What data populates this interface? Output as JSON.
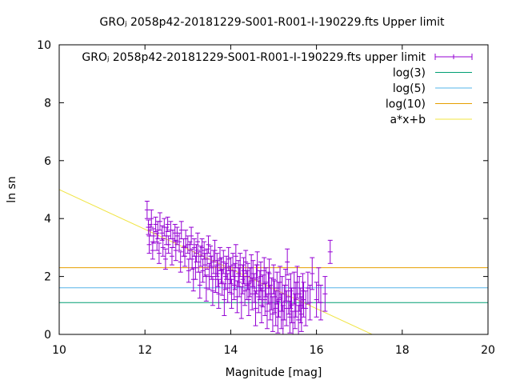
{
  "chart_data": {
    "type": "scatter",
    "title": "GROⱼ 2058p42-20181229-S001-R001-I-190229.fts Upper limit",
    "xlabel": "Magnitude [mag]",
    "ylabel": "ln sn",
    "xlim": [
      10,
      20
    ],
    "ylim": [
      0,
      10
    ],
    "xticks": [
      10,
      12,
      14,
      16,
      18,
      20
    ],
    "yticks": [
      0,
      2,
      4,
      6,
      8,
      10
    ],
    "grid": false,
    "legend_position": "top-right",
    "series": [
      {
        "name": "GROⱼ 2058p42-20181229-S001-R001-I-190229.fts upper limit",
        "kind": "errorbars",
        "color": "#9400d3",
        "points": [
          [
            12.05,
            4.3,
            0.3
          ],
          [
            12.08,
            3.7,
            0.25
          ],
          [
            12.1,
            3.1,
            0.3
          ],
          [
            12.12,
            3.6,
            0.2
          ],
          [
            12.15,
            4.0,
            0.3
          ],
          [
            12.18,
            2.9,
            0.3
          ],
          [
            12.2,
            3.4,
            0.25
          ],
          [
            12.25,
            3.8,
            0.25
          ],
          [
            12.28,
            3.2,
            0.3
          ],
          [
            12.3,
            3.6,
            0.3
          ],
          [
            12.33,
            2.8,
            0.35
          ],
          [
            12.35,
            3.9,
            0.3
          ],
          [
            12.4,
            3.5,
            0.25
          ],
          [
            12.42,
            3.0,
            0.3
          ],
          [
            12.45,
            3.7,
            0.3
          ],
          [
            12.48,
            2.6,
            0.35
          ],
          [
            12.5,
            3.4,
            0.3
          ],
          [
            12.53,
            3.8,
            0.25
          ],
          [
            12.55,
            3.1,
            0.3
          ],
          [
            12.6,
            3.6,
            0.3
          ],
          [
            12.63,
            2.7,
            0.3
          ],
          [
            12.65,
            3.3,
            0.3
          ],
          [
            12.7,
            3.5,
            0.3
          ],
          [
            12.72,
            2.9,
            0.35
          ],
          [
            12.75,
            3.4,
            0.3
          ],
          [
            12.8,
            3.2,
            0.3
          ],
          [
            12.83,
            2.5,
            0.35
          ],
          [
            12.85,
            3.6,
            0.3
          ],
          [
            12.9,
            3.0,
            0.3
          ],
          [
            12.93,
            2.7,
            0.35
          ],
          [
            12.95,
            3.3,
            0.3
          ],
          [
            13.0,
            3.1,
            0.3
          ],
          [
            13.02,
            2.2,
            0.4
          ],
          [
            13.05,
            2.9,
            0.3
          ],
          [
            13.08,
            3.4,
            0.3
          ],
          [
            13.1,
            2.6,
            0.35
          ],
          [
            13.13,
            1.9,
            0.4
          ],
          [
            13.15,
            3.0,
            0.3
          ],
          [
            13.18,
            2.3,
            0.4
          ],
          [
            13.2,
            2.8,
            0.3
          ],
          [
            13.23,
            3.2,
            0.3
          ],
          [
            13.25,
            2.5,
            0.35
          ],
          [
            13.28,
            1.7,
            0.45
          ],
          [
            13.3,
            2.7,
            0.35
          ],
          [
            13.33,
            3.0,
            0.3
          ],
          [
            13.35,
            2.2,
            0.4
          ],
          [
            13.38,
            2.9,
            0.3
          ],
          [
            13.4,
            2.4,
            0.4
          ],
          [
            13.43,
            1.6,
            0.45
          ],
          [
            13.45,
            2.6,
            0.35
          ],
          [
            13.48,
            3.1,
            0.3
          ],
          [
            13.5,
            2.0,
            0.45
          ],
          [
            13.53,
            2.7,
            0.35
          ],
          [
            13.55,
            2.3,
            0.4
          ],
          [
            13.58,
            1.5,
            0.5
          ],
          [
            13.6,
            2.5,
            0.4
          ],
          [
            13.63,
            2.9,
            0.35
          ],
          [
            13.65,
            1.9,
            0.45
          ],
          [
            13.68,
            2.4,
            0.4
          ],
          [
            13.7,
            2.1,
            0.45
          ],
          [
            13.72,
            1.4,
            0.5
          ],
          [
            13.75,
            2.6,
            0.4
          ],
          [
            13.78,
            2.2,
            0.45
          ],
          [
            13.8,
            1.8,
            0.45
          ],
          [
            13.83,
            2.5,
            0.4
          ],
          [
            13.85,
            1.2,
            0.55
          ],
          [
            13.88,
            2.0,
            0.45
          ],
          [
            13.9,
            2.3,
            0.4
          ],
          [
            13.93,
            1.6,
            0.5
          ],
          [
            13.95,
            2.6,
            0.4
          ],
          [
            13.98,
            1.9,
            0.45
          ],
          [
            14.0,
            2.2,
            0.45
          ],
          [
            14.02,
            1.4,
            0.5
          ],
          [
            14.05,
            2.4,
            0.4
          ],
          [
            14.08,
            1.7,
            0.5
          ],
          [
            14.1,
            2.0,
            0.45
          ],
          [
            14.12,
            2.7,
            0.4
          ],
          [
            14.15,
            1.3,
            0.55
          ],
          [
            14.18,
            2.1,
            0.45
          ],
          [
            14.2,
            1.8,
            0.5
          ],
          [
            14.22,
            2.4,
            0.4
          ],
          [
            14.25,
            1.1,
            0.55
          ],
          [
            14.28,
            1.9,
            0.5
          ],
          [
            14.3,
            2.2,
            0.45
          ],
          [
            14.33,
            1.5,
            0.5
          ],
          [
            14.35,
            2.5,
            0.4
          ],
          [
            14.38,
            1.7,
            0.5
          ],
          [
            14.4,
            2.0,
            0.45
          ],
          [
            14.42,
            1.2,
            0.55
          ],
          [
            14.45,
            1.8,
            0.5
          ],
          [
            14.48,
            2.3,
            0.45
          ],
          [
            14.5,
            1.4,
            0.55
          ],
          [
            14.52,
            2.1,
            0.45
          ],
          [
            14.55,
            1.6,
            0.5
          ],
          [
            14.58,
            0.9,
            0.6
          ],
          [
            14.6,
            1.9,
            0.5
          ],
          [
            14.62,
            2.4,
            0.45
          ],
          [
            14.65,
            1.3,
            0.55
          ],
          [
            14.68,
            1.7,
            0.5
          ],
          [
            14.7,
            2.0,
            0.5
          ],
          [
            14.72,
            1.0,
            0.6
          ],
          [
            14.75,
            1.5,
            0.55
          ],
          [
            14.78,
            2.2,
            0.45
          ],
          [
            14.8,
            1.2,
            0.55
          ],
          [
            14.82,
            1.8,
            0.5
          ],
          [
            14.85,
            0.8,
            0.6
          ],
          [
            14.88,
            1.6,
            0.55
          ],
          [
            14.9,
            2.1,
            0.5
          ],
          [
            14.92,
            1.1,
            0.6
          ],
          [
            14.95,
            1.4,
            0.55
          ],
          [
            14.98,
            0.7,
            0.6
          ],
          [
            15.0,
            1.9,
            0.5
          ],
          [
            15.02,
            1.3,
            0.55
          ],
          [
            15.05,
            0.9,
            0.6
          ],
          [
            15.08,
            1.6,
            0.55
          ],
          [
            15.1,
            0.6,
            0.55
          ],
          [
            15.12,
            1.2,
            0.6
          ],
          [
            15.15,
            1.8,
            0.55
          ],
          [
            15.18,
            0.8,
            0.6
          ],
          [
            15.2,
            1.4,
            0.6
          ],
          [
            15.22,
            0.5,
            0.5
          ],
          [
            15.25,
            1.1,
            0.6
          ],
          [
            15.28,
            1.7,
            0.55
          ],
          [
            15.3,
            0.9,
            0.6
          ],
          [
            15.32,
            2.5,
            0.45
          ],
          [
            15.35,
            1.3,
            0.6
          ],
          [
            15.38,
            0.6,
            0.55
          ],
          [
            15.4,
            1.5,
            0.6
          ],
          [
            15.42,
            1.0,
            0.6
          ],
          [
            15.45,
            0.4,
            0.4
          ],
          [
            15.48,
            1.6,
            0.55
          ],
          [
            15.5,
            0.8,
            0.6
          ],
          [
            15.52,
            1.2,
            0.6
          ],
          [
            15.55,
            1.8,
            0.55
          ],
          [
            15.58,
            0.5,
            0.5
          ],
          [
            15.6,
            1.4,
            0.6
          ],
          [
            15.63,
            1.0,
            0.6
          ],
          [
            15.65,
            0.7,
            0.6
          ],
          [
            15.68,
            1.5,
            0.6
          ],
          [
            15.7,
            1.2,
            0.6
          ],
          [
            15.75,
            0.9,
            0.6
          ],
          [
            15.8,
            1.6,
            0.55
          ],
          [
            15.85,
            1.1,
            0.6
          ],
          [
            15.9,
            2.1,
            0.55
          ],
          [
            16.0,
            1.2,
            0.6
          ],
          [
            16.05,
            1.7,
            0.6
          ],
          [
            16.1,
            1.1,
            0.6
          ],
          [
            16.2,
            1.4,
            0.6
          ],
          [
            16.32,
            2.85,
            0.4
          ]
        ]
      },
      {
        "name": "log(3)",
        "kind": "hline",
        "y": 1.0986,
        "color": "#009e73"
      },
      {
        "name": "log(5)",
        "kind": "hline",
        "y": 1.6094,
        "color": "#56b4e9"
      },
      {
        "name": "log(10)",
        "kind": "hline",
        "y": 2.3026,
        "color": "#e69f00"
      },
      {
        "name": "a*x+b",
        "kind": "fit_line",
        "a": -0.685,
        "b": 11.85,
        "color": "#f0e442"
      }
    ]
  }
}
